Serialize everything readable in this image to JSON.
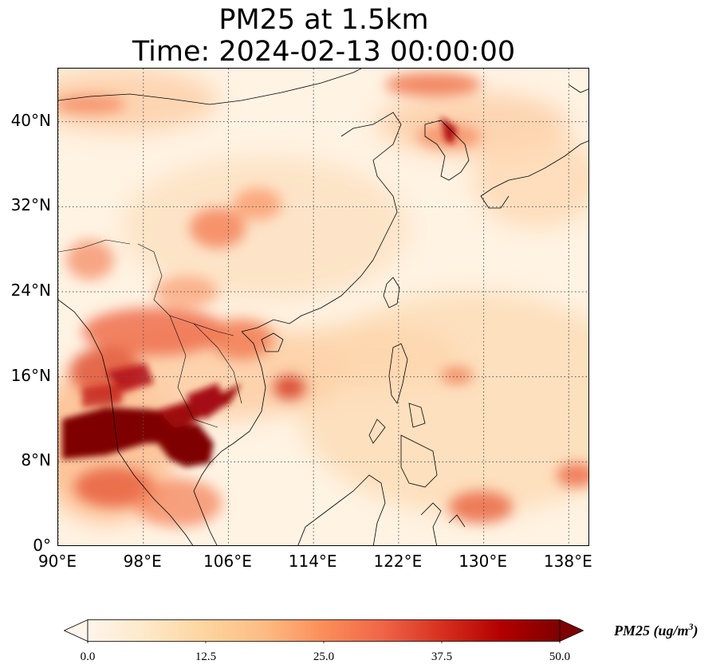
{
  "title": {
    "line1": "PM25 at 1.5km",
    "line2": "Time: 2024-02-13 00:00:00"
  },
  "map": {
    "lat_ticks": [
      "40°N",
      "32°N",
      "24°N",
      "16°N",
      "8°N",
      "0°"
    ],
    "lon_ticks": [
      "90°E",
      "98°E",
      "106°E",
      "114°E",
      "122°E",
      "130°E",
      "138°E"
    ],
    "lat_values": [
      40,
      32,
      24,
      16,
      8,
      0
    ],
    "lon_values": [
      90,
      98,
      106,
      114,
      122,
      130,
      138
    ],
    "extent": {
      "lon_min": 90,
      "lon_max": 140,
      "lat_min": 0,
      "lat_max": 45
    },
    "gridlines": "dotted",
    "field_min_color": "#fff5eb",
    "field_max_color": "#7f0000"
  },
  "colorbar": {
    "label": "PM25 (ug/m",
    "label_exp": "3",
    "label_close": ")",
    "ticks": [
      "0.0",
      "12.5",
      "25.0",
      "37.5",
      "50.0"
    ],
    "tick_values": [
      0,
      12.5,
      25,
      37.5,
      50
    ],
    "range": [
      0,
      50
    ],
    "colormap": "OrRd",
    "extend": "both"
  }
}
